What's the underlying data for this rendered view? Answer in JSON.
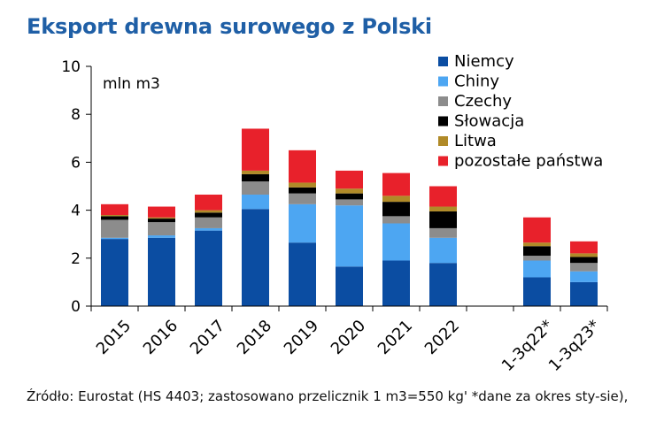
{
  "title": "Eksport drewna surowego z Polski",
  "source": "Źródło: Eurostat (HS 4403; zastosowano przelicznik 1 m3=550 kg' *dane za okres sty-sie),",
  "chart_data": {
    "type": "bar",
    "stacked": true,
    "ylabel": "mln m3",
    "ylim": [
      0,
      10
    ],
    "yticks": [
      0,
      2,
      4,
      6,
      8,
      10
    ],
    "legend_position": "top-right",
    "categories": [
      "2015",
      "2016",
      "2017",
      "2018",
      "2019",
      "2020",
      "2021",
      "2022",
      "",
      "1-3q22*",
      "1-3q23*"
    ],
    "series": [
      {
        "name": "Niemcy",
        "color": "#0b4da2",
        "values": [
          2.8,
          2.85,
          3.15,
          4.05,
          2.65,
          1.65,
          1.9,
          1.8,
          null,
          1.2,
          1.0
        ]
      },
      {
        "name": "Chiny",
        "color": "#4da6f2",
        "values": [
          0.05,
          0.1,
          0.1,
          0.6,
          1.6,
          2.55,
          1.55,
          1.05,
          null,
          0.7,
          0.45
        ]
      },
      {
        "name": "Czechy",
        "color": "#8c8c8c",
        "values": [
          0.75,
          0.55,
          0.45,
          0.55,
          0.45,
          0.25,
          0.3,
          0.4,
          null,
          0.2,
          0.35
        ]
      },
      {
        "name": "Słowacja",
        "color": "#000000",
        "values": [
          0.15,
          0.15,
          0.2,
          0.3,
          0.25,
          0.25,
          0.6,
          0.7,
          null,
          0.4,
          0.25
        ]
      },
      {
        "name": "Litwa",
        "color": "#b08a28",
        "values": [
          0.05,
          0.05,
          0.1,
          0.15,
          0.2,
          0.2,
          0.25,
          0.2,
          null,
          0.15,
          0.15
        ]
      },
      {
        "name": "pozostałe państwa",
        "color": "#e8212b",
        "values": [
          0.45,
          0.45,
          0.65,
          1.75,
          1.35,
          0.75,
          0.95,
          0.85,
          null,
          1.05,
          0.5
        ]
      }
    ]
  }
}
